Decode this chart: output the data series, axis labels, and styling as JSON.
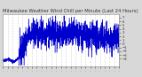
{
  "title": "Milwaukee Weather Wind Chill per Minute (Last 24 Hours)",
  "line_color": "#0000cc",
  "background_color": "#d8d8d8",
  "plot_bg_color": "#ffffff",
  "grid_color": "#aaaaaa",
  "ymin": -6,
  "ymax": 8,
  "yticks": [
    7,
    6,
    5,
    4,
    3,
    2,
    1,
    0,
    -1,
    -2,
    -3,
    -4
  ],
  "num_points": 1440,
  "title_fontsize": 3.8,
  "tick_fontsize": 2.8
}
